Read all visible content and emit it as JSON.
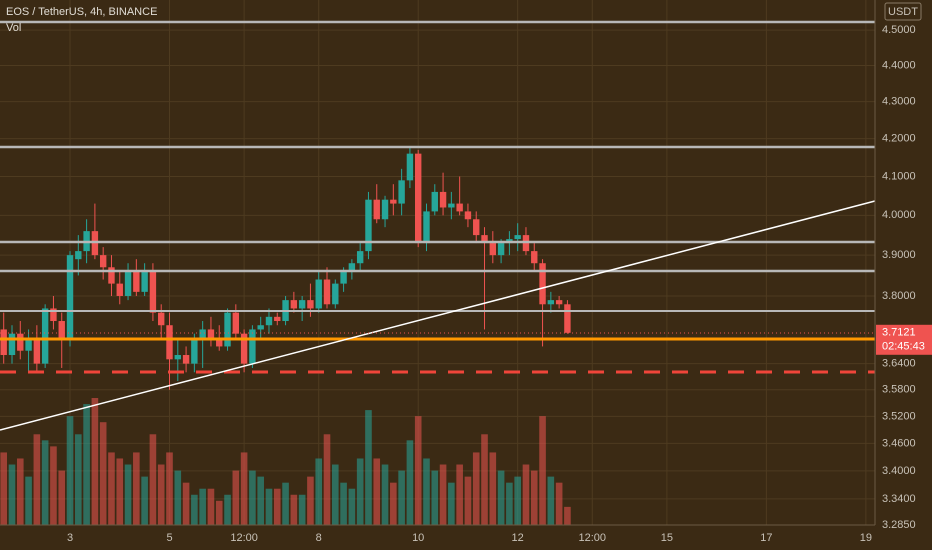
{
  "chart_data": {
    "type": "candlestick",
    "title": "EOS / TetherUS, 4h, BINANCE",
    "indicator": "Vol",
    "currency": "USDT",
    "log_scale": true,
    "grid": true,
    "up_color": "#26a69a",
    "down_color": "#ef5350",
    "categories": [
      null,
      null,
      null,
      null,
      null,
      null,
      null,
      null,
      "3",
      null,
      null,
      null,
      null,
      null,
      null,
      null,
      null,
      null,
      null,
      null,
      "5",
      null,
      null,
      null,
      null,
      null,
      null,
      null,
      null,
      "12:00",
      null,
      null,
      null,
      null,
      null,
      null,
      null,
      null,
      "8",
      null,
      null,
      null,
      null,
      null,
      null,
      null,
      null,
      null,
      null,
      null,
      "10",
      null,
      null,
      null,
      null,
      null,
      null,
      null,
      null,
      null,
      null,
      null,
      "12",
      null,
      null,
      null,
      null,
      null,
      null,
      null,
      null,
      "12:00",
      null,
      null,
      null,
      null,
      null,
      null,
      null,
      null,
      "15",
      null,
      null,
      null,
      null,
      null,
      null,
      null,
      null,
      null,
      null,
      null,
      "17",
      null,
      null,
      null,
      null,
      null,
      null,
      null,
      null,
      null,
      null,
      null,
      "19",
      null
    ],
    "open": [
      3.72,
      3.66,
      3.71,
      3.67,
      3.7,
      3.64,
      3.77,
      3.74,
      3.7,
      3.89,
      3.91,
      3.96,
      3.9,
      3.87,
      3.83,
      3.8,
      3.86,
      3.81,
      3.86,
      3.76,
      3.73,
      3.65,
      3.66,
      3.64,
      3.7,
      3.72,
      3.7,
      3.68,
      3.76,
      3.71,
      3.64,
      3.72,
      3.73,
      3.75,
      3.74,
      3.79,
      3.77,
      3.79,
      3.77,
      3.84,
      3.78,
      3.83,
      3.86,
      3.88,
      3.91,
      4.04,
      3.99,
      4.04,
      4.03,
      4.09,
      4.16,
      3.93,
      4.01,
      4.06,
      4.02,
      4.03,
      4.01,
      3.99,
      3.95,
      3.93,
      3.9,
      3.93,
      3.94,
      3.95,
      3.91,
      3.88,
      3.78,
      3.79,
      3.78,
      null,
      null,
      null,
      null,
      null,
      null,
      null,
      null,
      null,
      null,
      null,
      null,
      null,
      null,
      null,
      null,
      null,
      null,
      null,
      null,
      null,
      null,
      null,
      null,
      null,
      null,
      null,
      null,
      null,
      null,
      null,
      null,
      null,
      null,
      null,
      null,
      null
    ],
    "high": [
      3.76,
      3.73,
      3.74,
      3.72,
      3.73,
      3.78,
      3.8,
      3.76,
      3.91,
      3.95,
      3.99,
      4.03,
      3.92,
      3.9,
      3.86,
      3.88,
      3.89,
      3.88,
      3.88,
      3.78,
      3.76,
      3.7,
      3.68,
      3.71,
      3.74,
      3.75,
      3.73,
      3.77,
      3.78,
      3.72,
      3.73,
      3.75,
      3.77,
      3.76,
      3.8,
      3.81,
      3.8,
      3.83,
      3.86,
      3.87,
      3.84,
      3.87,
      3.89,
      3.93,
      4.06,
      4.08,
      4.05,
      4.08,
      4.12,
      4.18,
      4.17,
      4.03,
      4.08,
      4.11,
      4.06,
      4.1,
      4.03,
      4.01,
      3.97,
      3.96,
      3.94,
      3.96,
      3.98,
      3.97,
      3.93,
      3.89,
      3.81,
      3.8,
      3.79,
      null,
      null,
      null,
      null,
      null,
      null,
      null,
      null,
      null,
      null,
      null,
      null,
      null,
      null,
      null,
      null,
      null,
      null,
      null,
      null,
      null,
      null,
      null,
      null,
      null,
      null,
      null,
      null,
      null,
      null,
      null,
      null,
      null,
      null,
      null,
      null,
      null
    ],
    "low": [
      3.64,
      3.64,
      3.65,
      3.62,
      3.62,
      3.63,
      3.72,
      3.63,
      3.68,
      3.85,
      3.88,
      3.89,
      3.84,
      3.8,
      3.78,
      3.79,
      3.8,
      3.8,
      3.74,
      3.7,
      3.58,
      3.6,
      3.62,
      3.62,
      3.63,
      3.68,
      3.67,
      3.67,
      3.7,
      3.62,
      3.63,
      3.7,
      3.71,
      3.73,
      3.73,
      3.76,
      3.74,
      3.75,
      3.76,
      3.77,
      3.77,
      3.81,
      3.84,
      3.86,
      3.89,
      3.98,
      3.97,
      4.0,
      4.0,
      4.07,
      3.92,
      3.91,
      4.0,
      4.0,
      3.99,
      4.0,
      3.97,
      3.93,
      3.72,
      3.88,
      3.88,
      3.9,
      3.91,
      3.9,
      3.86,
      3.68,
      3.76,
      3.77,
      3.71,
      null,
      null,
      null,
      null,
      null,
      null,
      null,
      null,
      null,
      null,
      null,
      null,
      null,
      null,
      null,
      null,
      null,
      null,
      null,
      null,
      null,
      null,
      null,
      null,
      null,
      null,
      null,
      null,
      null,
      null,
      null,
      null,
      null,
      null,
      null,
      null,
      null
    ],
    "close": [
      3.66,
      3.71,
      3.67,
      3.7,
      3.64,
      3.77,
      3.74,
      3.7,
      3.9,
      3.91,
      3.96,
      3.9,
      3.87,
      3.83,
      3.8,
      3.86,
      3.81,
      3.86,
      3.76,
      3.73,
      3.65,
      3.66,
      3.64,
      3.7,
      3.72,
      3.7,
      3.68,
      3.76,
      3.71,
      3.64,
      3.72,
      3.73,
      3.75,
      3.74,
      3.79,
      3.77,
      3.79,
      3.77,
      3.84,
      3.78,
      3.83,
      3.86,
      3.88,
      3.91,
      4.04,
      3.99,
      4.04,
      4.03,
      4.09,
      4.16,
      3.93,
      4.01,
      4.06,
      4.02,
      4.03,
      4.01,
      3.99,
      3.95,
      3.93,
      3.9,
      3.93,
      3.94,
      3.95,
      3.91,
      3.88,
      3.78,
      3.79,
      3.78,
      3.7121,
      null,
      null,
      null,
      null,
      null,
      null,
      null,
      null,
      null,
      null,
      null,
      null,
      null,
      null,
      null,
      null,
      null,
      null,
      null,
      null,
      null,
      null,
      null,
      null,
      null,
      null,
      null,
      null,
      null,
      null,
      null,
      null,
      null,
      null,
      null,
      null,
      null
    ],
    "volume": [
      60,
      50,
      55,
      40,
      75,
      70,
      65,
      45,
      90,
      75,
      100,
      105,
      85,
      60,
      55,
      50,
      60,
      40,
      75,
      50,
      60,
      45,
      35,
      25,
      30,
      30,
      20,
      25,
      45,
      60,
      45,
      40,
      30,
      30,
      35,
      25,
      25,
      40,
      55,
      75,
      50,
      35,
      30,
      55,
      95,
      55,
      50,
      35,
      45,
      70,
      90,
      55,
      45,
      50,
      35,
      50,
      40,
      60,
      75,
      60,
      45,
      35,
      40,
      50,
      45,
      90,
      40,
      35,
      15,
      null,
      null,
      null,
      null,
      null,
      null,
      null,
      null,
      null,
      null,
      null,
      null,
      null,
      null,
      null,
      null,
      null,
      null,
      null,
      null,
      null,
      null,
      null,
      null,
      null,
      null,
      null,
      null,
      null,
      null,
      null,
      null,
      null,
      null,
      null,
      null,
      null
    ],
    "ylim": [
      3.285,
      4.587
    ],
    "yticks": [
      {
        "value": 4.5,
        "label": "4.5000"
      },
      {
        "value": 4.4,
        "label": "4.4000"
      },
      {
        "value": 4.3,
        "label": "4.3000"
      },
      {
        "value": 4.2,
        "label": "4.2000"
      },
      {
        "value": 4.1,
        "label": "4.1000"
      },
      {
        "value": 4.0,
        "label": "4.0000"
      },
      {
        "value": 3.9,
        "label": "3.9000"
      },
      {
        "value": 3.8,
        "label": "3.8000"
      },
      {
        "value": 3.64,
        "label": "3.6400"
      },
      {
        "value": 3.58,
        "label": "3.5800"
      },
      {
        "value": 3.52,
        "label": "3.5200"
      },
      {
        "value": 3.46,
        "label": "3.4600"
      },
      {
        "value": 3.4,
        "label": "3.4000"
      },
      {
        "value": 3.34,
        "label": "3.3400"
      },
      {
        "value": 3.285,
        "label": "3.2850"
      }
    ],
    "last_price": {
      "value": 3.7121,
      "label": "3.7121"
    },
    "countdown": "02:45:43"
  }
}
